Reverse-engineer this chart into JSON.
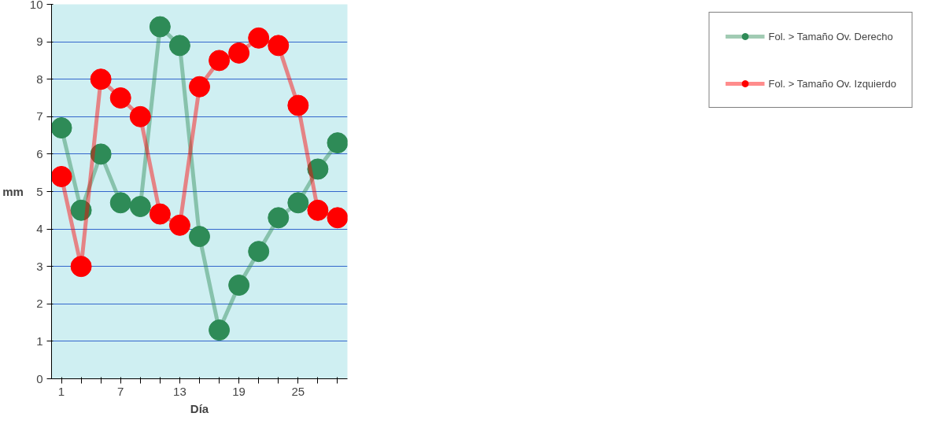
{
  "chart_data": {
    "type": "line",
    "xlabel": "Día",
    "ylabel": "mm",
    "categories": [
      "1",
      null,
      null,
      "7",
      null,
      null,
      "13",
      null,
      null,
      "19",
      null,
      null,
      "25",
      null,
      null
    ],
    "series": [
      {
        "name": "Fol. > Tamaño Ov. Derecho",
        "color": "#2e8b57",
        "values": [
          6.7,
          4.5,
          6.0,
          4.7,
          4.6,
          9.4,
          8.9,
          3.8,
          1.3,
          2.5,
          3.4,
          4.3,
          4.7,
          5.6,
          6.3
        ]
      },
      {
        "name": "Fol. > Tamaño Ov. Izquierdo",
        "color": "#ff0000",
        "values": [
          5.4,
          3.0,
          8.0,
          7.5,
          7.0,
          4.4,
          4.1,
          7.8,
          8.5,
          8.7,
          9.1,
          8.9,
          7.3,
          4.5,
          4.3
        ]
      }
    ],
    "ylim": [
      0,
      10
    ],
    "yticks": [
      0,
      1,
      2,
      3,
      4,
      5,
      6,
      7,
      8,
      9,
      10
    ],
    "grid": "y",
    "legend": "right",
    "marker": "circle",
    "line_style": "solid"
  }
}
